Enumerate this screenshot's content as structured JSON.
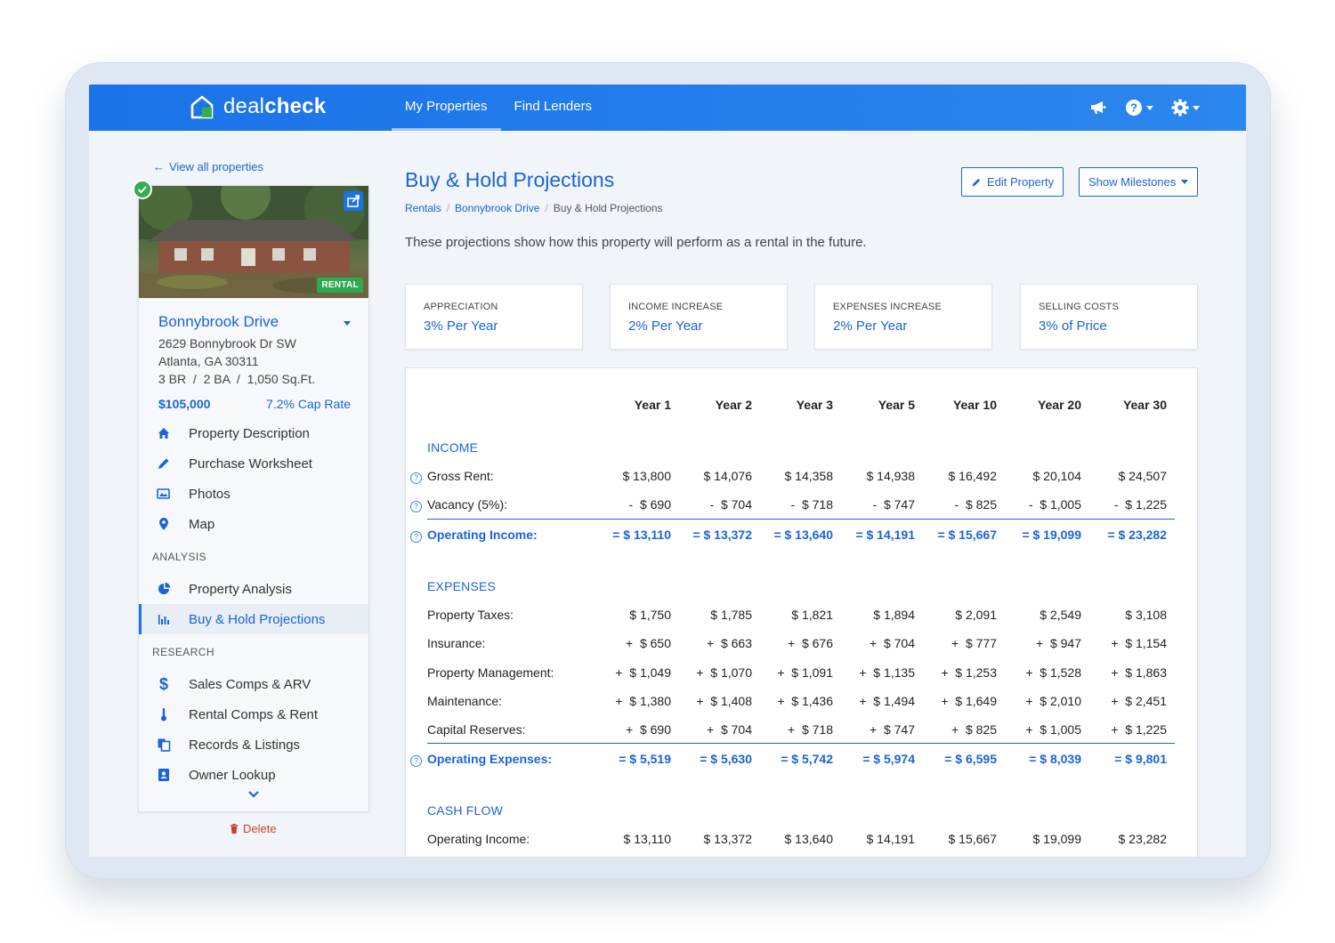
{
  "brand": {
    "prefix": "deal",
    "suffix": "check"
  },
  "nav": {
    "items": [
      "My Properties",
      "Find Lenders"
    ]
  },
  "header_icons": [
    "megaphone-icon",
    "help-icon",
    "gear-icon"
  ],
  "sidebar": {
    "back_link": "View all properties",
    "photo_badge": "RENTAL",
    "property_name": "Bonnybrook Drive",
    "address_line1": "2629 Bonnybrook Dr SW",
    "address_line2": "Atlanta, GA 30311",
    "specs": "3 BR  /  2 BA  /  1,050 Sq.Ft.",
    "price": "$105,000",
    "cap_rate": "7.2% Cap Rate",
    "menu": [
      "Property Description",
      "Purchase Worksheet",
      "Photos",
      "Map"
    ],
    "analysis_label": "ANALYSIS",
    "analysis_menu": [
      "Property Analysis",
      "Buy & Hold Projections"
    ],
    "research_label": "RESEARCH",
    "research_menu": [
      "Sales Comps & ARV",
      "Rental Comps & Rent",
      "Records & Listings",
      "Owner Lookup"
    ],
    "delete_label": "Delete"
  },
  "page": {
    "title": "Buy & Hold Projections",
    "edit_button": "Edit Property",
    "milestones_button": "Show Milestones",
    "breadcrumbs": [
      "Rentals",
      "Bonnybrook Drive",
      "Buy & Hold Projections"
    ],
    "intro": "These projections show how this property will perform as a rental in the future."
  },
  "assumptions": [
    {
      "label": "APPRECIATION",
      "value": "3% Per Year"
    },
    {
      "label": "INCOME INCREASE",
      "value": "2% Per Year"
    },
    {
      "label": "EXPENSES INCREASE",
      "value": "2% Per Year"
    },
    {
      "label": "SELLING COSTS",
      "value": "3% of Price"
    }
  ],
  "table": {
    "columns": [
      "Year 1",
      "Year 2",
      "Year 3",
      "Year 5",
      "Year 10",
      "Year 20",
      "Year 30"
    ],
    "income_title": "INCOME",
    "income_rows": [
      {
        "label": "Gross Rent:",
        "values": [
          "$ 13,800",
          "$ 14,076",
          "$ 14,358",
          "$ 14,938",
          "$ 16,492",
          "$ 20,104",
          "$ 24,507"
        ]
      },
      {
        "label": "Vacancy (5%):",
        "values": [
          "-  $ 690",
          "-  $ 704",
          "-  $ 718",
          "-  $ 747",
          "-  $ 825",
          "-  $ 1,005",
          "-  $ 1,225"
        ]
      }
    ],
    "income_total": {
      "label": "Operating Income:",
      "values": [
        "= $ 13,110",
        "= $ 13,372",
        "= $ 13,640",
        "= $ 14,191",
        "= $ 15,667",
        "= $ 19,099",
        "= $ 23,282"
      ]
    },
    "expenses_title": "EXPENSES",
    "expense_rows": [
      {
        "label": "Property Taxes:",
        "values": [
          "$ 1,750",
          "$ 1,785",
          "$ 1,821",
          "$ 1,894",
          "$ 2,091",
          "$ 2,549",
          "$ 3,108"
        ]
      },
      {
        "label": "Insurance:",
        "values": [
          "+  $ 650",
          "+  $ 663",
          "+  $ 676",
          "+  $ 704",
          "+  $ 777",
          "+  $ 947",
          "+  $ 1,154"
        ]
      },
      {
        "label": "Property Management:",
        "values": [
          "+  $ 1,049",
          "+  $ 1,070",
          "+  $ 1,091",
          "+  $ 1,135",
          "+  $ 1,253",
          "+  $ 1,528",
          "+  $ 1,863"
        ]
      },
      {
        "label": "Maintenance:",
        "values": [
          "+  $ 1,380",
          "+  $ 1,408",
          "+  $ 1,436",
          "+  $ 1,494",
          "+  $ 1,649",
          "+  $ 2,010",
          "+  $ 2,451"
        ]
      },
      {
        "label": "Capital Reserves:",
        "values": [
          "+  $ 690",
          "+  $ 704",
          "+  $ 718",
          "+  $ 747",
          "+  $ 825",
          "+  $ 1,005",
          "+  $ 1,225"
        ]
      }
    ],
    "expenses_total": {
      "label": "Operating Expenses:",
      "values": [
        "= $ 5,519",
        "= $ 5,630",
        "= $ 5,742",
        "= $ 5,974",
        "= $ 6,595",
        "= $ 8,039",
        "= $ 9,801"
      ]
    },
    "cashflow_title": "CASH FLOW",
    "cashflow_rows": [
      {
        "label": "Operating Income:",
        "values": [
          "$ 13,110",
          "$ 13,372",
          "$ 13,640",
          "$ 14,191",
          "$ 15,667",
          "$ 19,099",
          "$ 23,282"
        ]
      }
    ]
  }
}
